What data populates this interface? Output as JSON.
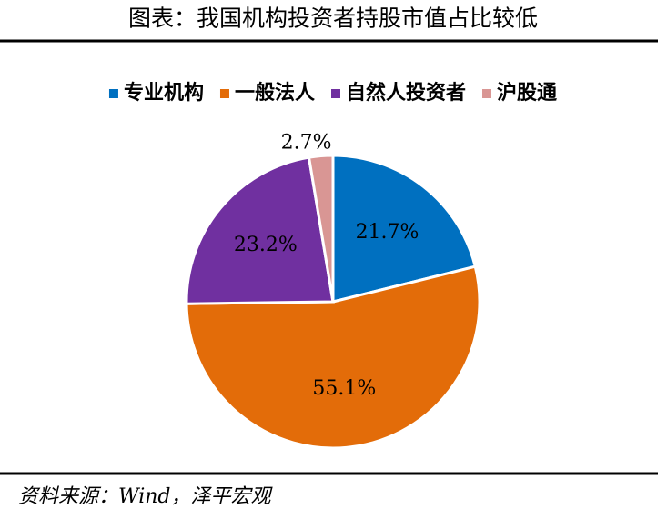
{
  "chart_data": {
    "type": "pie",
    "title": "图表：我国机构投资者持股市值占比较低",
    "categories": [
      "专业机构",
      "一般法人",
      "自然人投资者",
      "沪股通"
    ],
    "values": [
      21.7,
      55.1,
      23.2,
      2.7
    ],
    "value_labels": [
      "21.7%",
      "55.1%",
      "23.2%",
      "2.7%"
    ],
    "colors": [
      "#0070c0",
      "#e36c09",
      "#7030a0",
      "#d99694"
    ],
    "legend": "top",
    "source": "资料来源：Wind，泽平宏观"
  }
}
